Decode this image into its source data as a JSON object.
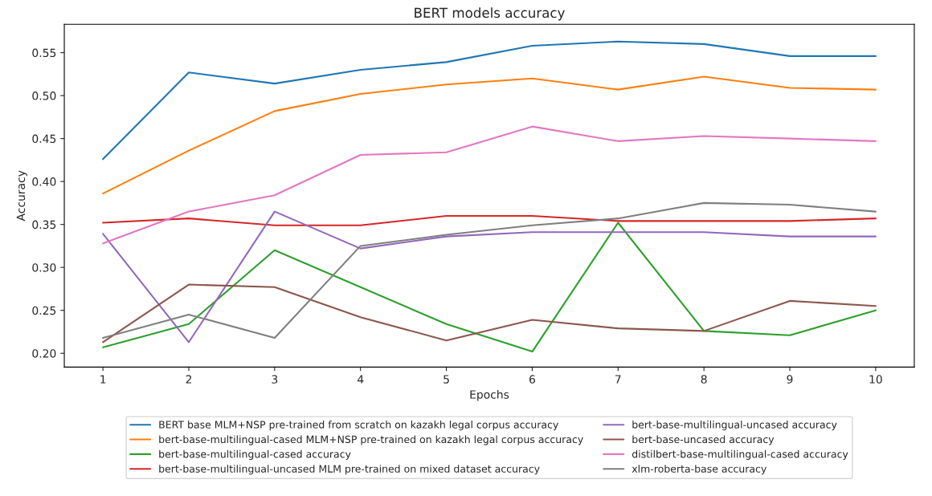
{
  "chart_data": {
    "type": "line",
    "title": "BERT models accuracy",
    "xlabel": "Epochs",
    "ylabel": "Accuracy",
    "x": [
      1,
      2,
      3,
      4,
      5,
      6,
      7,
      8,
      9,
      10
    ],
    "series": [
      {
        "name": "BERT base MLM+NSP pre-trained from scratch on kazakh legal corpus accuracy",
        "color": "#1f77b4",
        "values": [
          0.426,
          0.527,
          0.514,
          0.53,
          0.539,
          0.558,
          0.563,
          0.56,
          0.546,
          0.546
        ]
      },
      {
        "name": "bert-base-multilingual-cased MLM+NSP pre-trained on kazakh legal corpus accuracy",
        "color": "#ff7f0e",
        "values": [
          0.386,
          0.436,
          0.482,
          0.502,
          0.513,
          0.52,
          0.507,
          0.522,
          0.509,
          0.507
        ]
      },
      {
        "name": "bert-base-multilingual-cased accuracy",
        "color": "#2ca02c",
        "values": [
          0.207,
          0.234,
          0.32,
          0.277,
          0.234,
          0.202,
          0.352,
          0.226,
          0.221,
          0.25
        ]
      },
      {
        "name": "bert-base-multilingual-uncased MLM pre-trained on mixed dataset accuracy",
        "color": "#d62728",
        "values": [
          0.352,
          0.357,
          0.349,
          0.349,
          0.36,
          0.36,
          0.354,
          0.354,
          0.354,
          0.357
        ]
      },
      {
        "name": "bert-base-multilingual-uncased accuracy",
        "color": "#9467bd",
        "values": [
          0.339,
          0.213,
          0.365,
          0.322,
          0.336,
          0.341,
          0.341,
          0.341,
          0.336,
          0.336
        ]
      },
      {
        "name": "bert-base-uncased accuracy",
        "color": "#8c564b",
        "values": [
          0.213,
          0.28,
          0.277,
          0.242,
          0.215,
          0.239,
          0.229,
          0.226,
          0.261,
          0.255
        ]
      },
      {
        "name": "distilbert-base-multilingual-cased accuracy",
        "color": "#e377c2",
        "values": [
          0.328,
          0.365,
          0.384,
          0.431,
          0.434,
          0.464,
          0.447,
          0.453,
          0.45,
          0.447
        ]
      },
      {
        "name": "xlm-roberta-base accuracy",
        "color": "#7f7f7f",
        "values": [
          0.218,
          0.245,
          0.218,
          0.325,
          0.338,
          0.349,
          0.357,
          0.375,
          0.373,
          0.365
        ]
      }
    ],
    "xlim": [
      0.55,
      10.45
    ],
    "ylim": [
      0.184,
      0.583
    ],
    "xticks": [
      1,
      2,
      3,
      4,
      5,
      6,
      7,
      8,
      9,
      10
    ],
    "yticks": [
      {
        "value": 0.2,
        "label": "0.20"
      },
      {
        "value": 0.25,
        "label": "0.25"
      },
      {
        "value": 0.3,
        "label": "0.30"
      },
      {
        "value": 0.35,
        "label": "0.35"
      },
      {
        "value": 0.4,
        "label": "0.40"
      },
      {
        "value": 0.45,
        "label": "0.45"
      },
      {
        "value": 0.5,
        "label": "0.50"
      },
      {
        "value": 0.55,
        "label": "0.55"
      }
    ],
    "legend": "bottom",
    "grid": false,
    "marker": "none",
    "line_style": "solid"
  }
}
